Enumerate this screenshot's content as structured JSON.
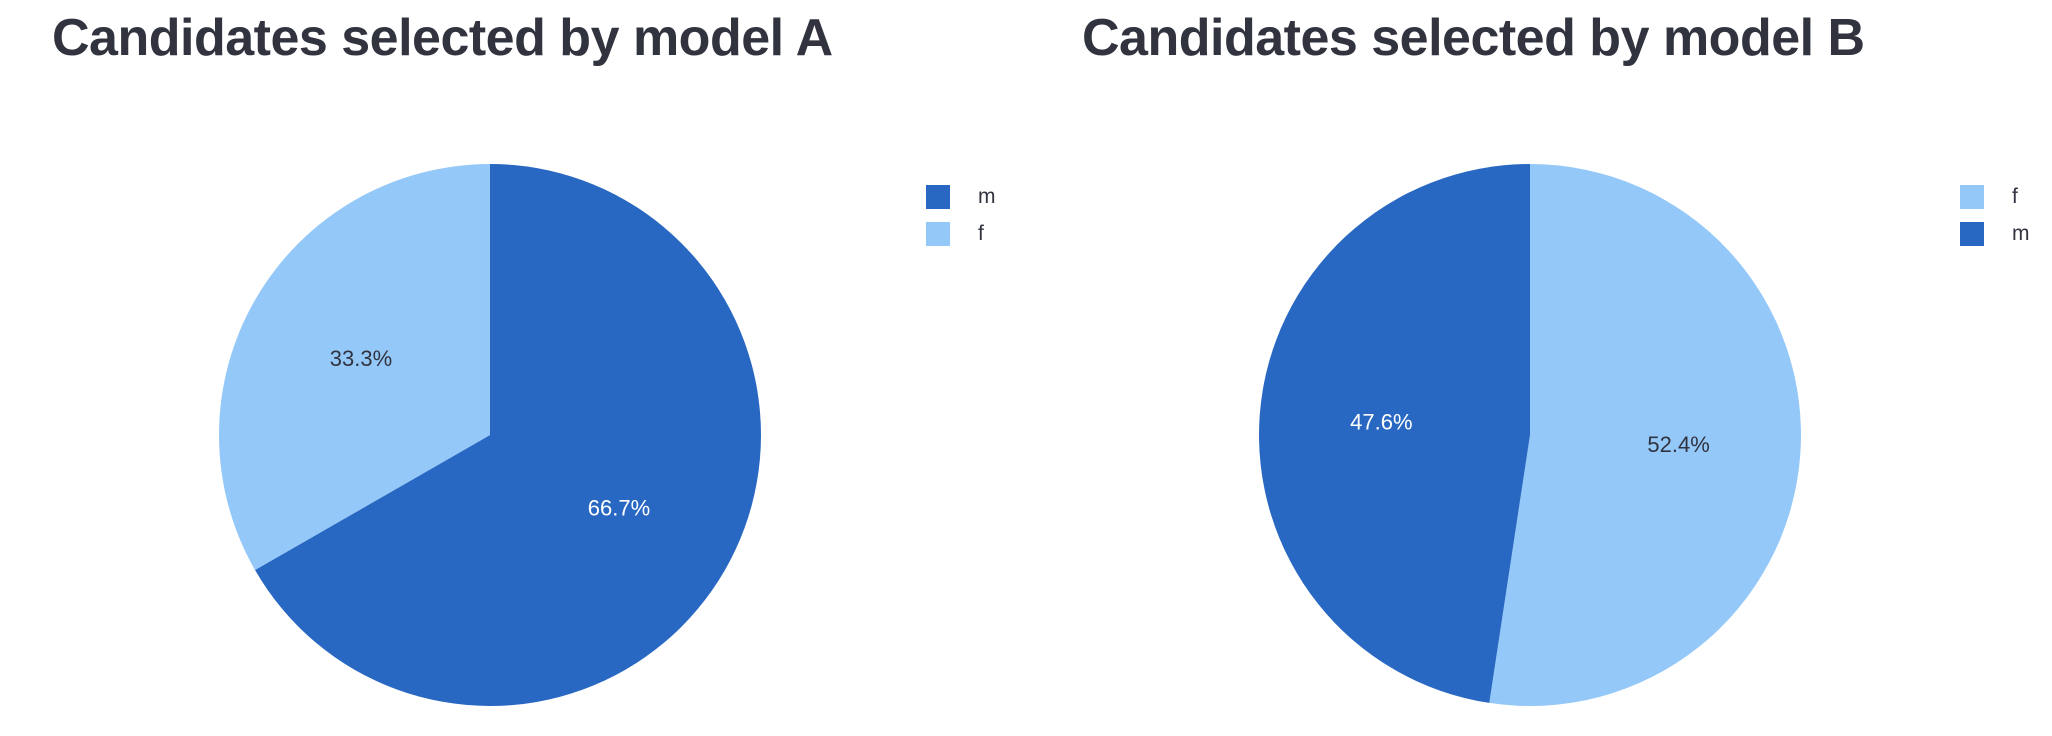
{
  "colors": {
    "m": "#2968c2",
    "f": "#94c8f9",
    "label_dark": "#31333f",
    "label_light": "#ffffff"
  },
  "chart_data": [
    {
      "type": "pie",
      "title": "Candidates selected by model A",
      "slices": [
        {
          "label": "m",
          "value": 66.7,
          "text": "66.7%"
        },
        {
          "label": "f",
          "value": 33.3,
          "text": "33.3%"
        }
      ],
      "legend": [
        "m",
        "f"
      ],
      "legend_position": "top-right"
    },
    {
      "type": "pie",
      "title": "Candidates selected by model B",
      "slices": [
        {
          "label": "f",
          "value": 52.4,
          "text": "52.4%"
        },
        {
          "label": "m",
          "value": 47.6,
          "text": "47.6%"
        }
      ],
      "legend": [
        "f",
        "m"
      ],
      "legend_position": "top-right"
    }
  ]
}
